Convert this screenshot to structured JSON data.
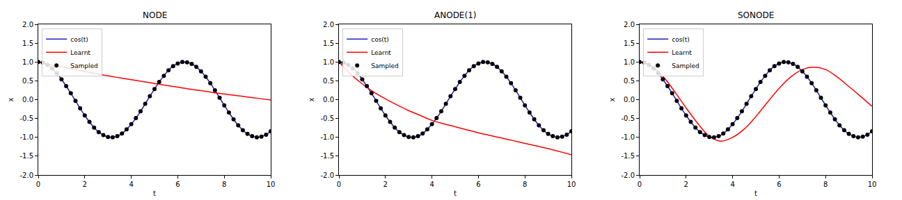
{
  "chart_data": [
    {
      "type": "line",
      "title": "NODE",
      "x_label": "t",
      "y_label": "x",
      "legend": "upper left",
      "xlim": [
        0,
        10
      ],
      "xticks": [
        0,
        2,
        4,
        6,
        8,
        10
      ],
      "ylim": [
        -2,
        2
      ],
      "yticks": [
        {
          "value": -2,
          "label": "-2.0"
        },
        {
          "value": -1.5,
          "label": "-1.5"
        },
        {
          "value": -1,
          "label": "-1.0"
        },
        {
          "value": -0.5,
          "label": "-0.5"
        },
        {
          "value": 0,
          "label": "0.0"
        },
        {
          "value": 0.5,
          "label": "0.5"
        },
        {
          "value": 1,
          "label": "1.0"
        },
        {
          "value": 1.5,
          "label": "1.5"
        },
        {
          "value": 2,
          "label": "2.0"
        }
      ],
      "x": [
        0,
        0.2,
        0.4,
        0.6,
        0.8,
        1.0,
        1.2,
        1.4,
        1.6,
        1.8,
        2.0,
        2.2,
        2.4,
        2.6,
        2.8,
        3.0,
        3.2,
        3.4,
        3.6,
        3.8,
        4.0,
        4.2,
        4.4,
        4.6,
        4.8,
        5.0,
        5.2,
        5.4,
        5.6,
        5.8,
        6.0,
        6.2,
        6.4,
        6.6,
        6.8,
        7.0,
        7.2,
        7.4,
        7.6,
        7.8,
        8.0,
        8.2,
        8.4,
        8.6,
        8.8,
        9.0,
        9.2,
        9.4,
        9.6,
        9.8,
        10.0
      ],
      "series": [
        {
          "name": "cos(t)",
          "type": "line",
          "color": "#1f1fbf",
          "line_style": "solid",
          "values": [
            1.0,
            0.98,
            0.92,
            0.83,
            0.7,
            0.54,
            0.36,
            0.17,
            -0.03,
            -0.23,
            -0.42,
            -0.59,
            -0.74,
            -0.86,
            -0.94,
            -0.99,
            -1.0,
            -0.97,
            -0.9,
            -0.79,
            -0.65,
            -0.49,
            -0.31,
            -0.11,
            0.09,
            0.28,
            0.47,
            0.63,
            0.78,
            0.89,
            0.96,
            1.0,
            0.99,
            0.95,
            0.87,
            0.75,
            0.61,
            0.44,
            0.25,
            0.05,
            -0.15,
            -0.34,
            -0.52,
            -0.68,
            -0.81,
            -0.91,
            -0.97,
            -1.0,
            -0.98,
            -0.93,
            -0.84
          ]
        },
        {
          "name": "Learnt",
          "type": "line",
          "color": "#ff0000",
          "line_style": "solid",
          "x": [
            0,
            0.5,
            1,
            1.5,
            2,
            2.5,
            3,
            3.5,
            4,
            4.5,
            5,
            5.5,
            6,
            6.5,
            7,
            7.5,
            8,
            8.5,
            9,
            9.5,
            10
          ],
          "values": [
            1.0,
            0.93,
            0.87,
            0.81,
            0.75,
            0.69,
            0.63,
            0.58,
            0.53,
            0.48,
            0.43,
            0.38,
            0.33,
            0.28,
            0.24,
            0.19,
            0.15,
            0.11,
            0.07,
            0.03,
            -0.01
          ]
        },
        {
          "name": "Sampled",
          "type": "scatter",
          "color": "#000000",
          "marker": "circle",
          "values": [
            1.0,
            0.98,
            0.92,
            0.83,
            0.7,
            0.54,
            0.36,
            0.17,
            -0.03,
            -0.23,
            -0.42,
            -0.59,
            -0.74,
            -0.86,
            -0.94,
            -0.99,
            -1.0,
            -0.97,
            -0.9,
            -0.79,
            -0.65,
            -0.49,
            -0.31,
            -0.11,
            0.09,
            0.28,
            0.47,
            0.63,
            0.78,
            0.89,
            0.96,
            1.0,
            0.99,
            0.95,
            0.87,
            0.75,
            0.61,
            0.44,
            0.25,
            0.05,
            -0.15,
            -0.34,
            -0.52,
            -0.68,
            -0.81,
            -0.91,
            -0.97,
            -1.0,
            -0.98,
            -0.93,
            -0.84
          ]
        }
      ]
    },
    {
      "type": "line",
      "title": "ANODE(1)",
      "x_label": "t",
      "y_label": "x",
      "legend": "upper left",
      "xlim": [
        0,
        10
      ],
      "xticks": [
        0,
        2,
        4,
        6,
        8,
        10
      ],
      "ylim": [
        -2,
        2
      ],
      "yticks": [
        {
          "value": -2,
          "label": "-2.0"
        },
        {
          "value": -1.5,
          "label": "-1.5"
        },
        {
          "value": -1,
          "label": "-1.0"
        },
        {
          "value": -0.5,
          "label": "-0.5"
        },
        {
          "value": 0,
          "label": "0.0"
        },
        {
          "value": 0.5,
          "label": "0.5"
        },
        {
          "value": 1,
          "label": "1.0"
        },
        {
          "value": 1.5,
          "label": "1.5"
        },
        {
          "value": 2,
          "label": "2.0"
        }
      ],
      "x": [
        0,
        0.2,
        0.4,
        0.6,
        0.8,
        1.0,
        1.2,
        1.4,
        1.6,
        1.8,
        2.0,
        2.2,
        2.4,
        2.6,
        2.8,
        3.0,
        3.2,
        3.4,
        3.6,
        3.8,
        4.0,
        4.2,
        4.4,
        4.6,
        4.8,
        5.0,
        5.2,
        5.4,
        5.6,
        5.8,
        6.0,
        6.2,
        6.4,
        6.6,
        6.8,
        7.0,
        7.2,
        7.4,
        7.6,
        7.8,
        8.0,
        8.2,
        8.4,
        8.6,
        8.8,
        9.0,
        9.2,
        9.4,
        9.6,
        9.8,
        10.0
      ],
      "series": [
        {
          "name": "cos(t)",
          "type": "line",
          "color": "#1f1fbf",
          "line_style": "solid",
          "values": [
            1.0,
            0.98,
            0.92,
            0.83,
            0.7,
            0.54,
            0.36,
            0.17,
            -0.03,
            -0.23,
            -0.42,
            -0.59,
            -0.74,
            -0.86,
            -0.94,
            -0.99,
            -1.0,
            -0.97,
            -0.9,
            -0.79,
            -0.65,
            -0.49,
            -0.31,
            -0.11,
            0.09,
            0.28,
            0.47,
            0.63,
            0.78,
            0.89,
            0.96,
            1.0,
            0.99,
            0.95,
            0.87,
            0.75,
            0.61,
            0.44,
            0.25,
            0.05,
            -0.15,
            -0.34,
            -0.52,
            -0.68,
            -0.81,
            -0.91,
            -0.97,
            -1.0,
            -0.98,
            -0.93,
            -0.84
          ]
        },
        {
          "name": "Learnt",
          "type": "line",
          "color": "#ff0000",
          "line_style": "solid",
          "x": [
            0,
            0.5,
            1,
            1.5,
            2,
            2.5,
            3,
            3.5,
            4,
            4.5,
            5,
            5.5,
            6,
            6.5,
            7,
            7.5,
            8,
            8.5,
            9,
            9.5,
            10
          ],
          "values": [
            1.0,
            0.68,
            0.42,
            0.2,
            0.02,
            -0.14,
            -0.29,
            -0.42,
            -0.55,
            -0.64,
            -0.72,
            -0.8,
            -0.88,
            -0.95,
            -1.02,
            -1.09,
            -1.16,
            -1.23,
            -1.3,
            -1.38,
            -1.46
          ]
        },
        {
          "name": "Sampled",
          "type": "scatter",
          "color": "#000000",
          "marker": "circle",
          "values": [
            1.0,
            0.98,
            0.92,
            0.83,
            0.7,
            0.54,
            0.36,
            0.17,
            -0.03,
            -0.23,
            -0.42,
            -0.59,
            -0.74,
            -0.86,
            -0.94,
            -0.99,
            -1.0,
            -0.97,
            -0.9,
            -0.79,
            -0.65,
            -0.49,
            -0.31,
            -0.11,
            0.09,
            0.28,
            0.47,
            0.63,
            0.78,
            0.89,
            0.96,
            1.0,
            0.99,
            0.95,
            0.87,
            0.75,
            0.61,
            0.44,
            0.25,
            0.05,
            -0.15,
            -0.34,
            -0.52,
            -0.68,
            -0.81,
            -0.91,
            -0.97,
            -1.0,
            -0.98,
            -0.93,
            -0.84
          ]
        }
      ]
    },
    {
      "type": "line",
      "title": "SONODE",
      "x_label": "t",
      "y_label": "x",
      "legend": "upper left",
      "xlim": [
        0,
        10
      ],
      "xticks": [
        0,
        2,
        4,
        6,
        8,
        10
      ],
      "ylim": [
        -2,
        2
      ],
      "yticks": [
        {
          "value": -2,
          "label": "-2.0"
        },
        {
          "value": -1.5,
          "label": "-1.5"
        },
        {
          "value": -1,
          "label": "-1.0"
        },
        {
          "value": -0.5,
          "label": "-0.5"
        },
        {
          "value": 0,
          "label": "0.0"
        },
        {
          "value": 0.5,
          "label": "0.5"
        },
        {
          "value": 1,
          "label": "1.0"
        },
        {
          "value": 1.5,
          "label": "1.5"
        },
        {
          "value": 2,
          "label": "2.0"
        }
      ],
      "x": [
        0,
        0.2,
        0.4,
        0.6,
        0.8,
        1.0,
        1.2,
        1.4,
        1.6,
        1.8,
        2.0,
        2.2,
        2.4,
        2.6,
        2.8,
        3.0,
        3.2,
        3.4,
        3.6,
        3.8,
        4.0,
        4.2,
        4.4,
        4.6,
        4.8,
        5.0,
        5.2,
        5.4,
        5.6,
        5.8,
        6.0,
        6.2,
        6.4,
        6.6,
        6.8,
        7.0,
        7.2,
        7.4,
        7.6,
        7.8,
        8.0,
        8.2,
        8.4,
        8.6,
        8.8,
        9.0,
        9.2,
        9.4,
        9.6,
        9.8,
        10.0
      ],
      "series": [
        {
          "name": "cos(t)",
          "type": "line",
          "color": "#1f1fbf",
          "line_style": "solid",
          "values": [
            1.0,
            0.98,
            0.92,
            0.83,
            0.7,
            0.54,
            0.36,
            0.17,
            -0.03,
            -0.23,
            -0.42,
            -0.59,
            -0.74,
            -0.86,
            -0.94,
            -0.99,
            -1.0,
            -0.97,
            -0.9,
            -0.79,
            -0.65,
            -0.49,
            -0.31,
            -0.11,
            0.09,
            0.28,
            0.47,
            0.63,
            0.78,
            0.89,
            0.96,
            1.0,
            0.99,
            0.95,
            0.87,
            0.75,
            0.61,
            0.44,
            0.25,
            0.05,
            -0.15,
            -0.34,
            -0.52,
            -0.68,
            -0.81,
            -0.91,
            -0.97,
            -1.0,
            -0.98,
            -0.93,
            -0.84
          ]
        },
        {
          "name": "Learnt",
          "type": "line",
          "color": "#ff0000",
          "line_style": "solid",
          "x": [
            0,
            0.5,
            1,
            1.5,
            2,
            2.5,
            3,
            3.5,
            4,
            4.5,
            5,
            5.5,
            6,
            6.5,
            7,
            7.5,
            8,
            8.5,
            9,
            9.5,
            10
          ],
          "values": [
            1.0,
            0.9,
            0.62,
            0.22,
            -0.22,
            -0.63,
            -0.97,
            -1.1,
            -1.0,
            -0.78,
            -0.45,
            -0.07,
            0.3,
            0.6,
            0.8,
            0.86,
            0.8,
            0.6,
            0.35,
            0.09,
            -0.18
          ]
        },
        {
          "name": "Sampled",
          "type": "scatter",
          "color": "#000000",
          "marker": "circle",
          "values": [
            1.0,
            0.98,
            0.92,
            0.83,
            0.7,
            0.54,
            0.36,
            0.17,
            -0.03,
            -0.23,
            -0.42,
            -0.59,
            -0.74,
            -0.86,
            -0.94,
            -0.99,
            -1.0,
            -0.97,
            -0.9,
            -0.79,
            -0.65,
            -0.49,
            -0.31,
            -0.11,
            0.09,
            0.28,
            0.47,
            0.63,
            0.78,
            0.89,
            0.96,
            1.0,
            0.99,
            0.95,
            0.87,
            0.75,
            0.61,
            0.44,
            0.25,
            0.05,
            -0.15,
            -0.34,
            -0.52,
            -0.68,
            -0.81,
            -0.91,
            -0.97,
            -1.0,
            -0.98,
            -0.93,
            -0.84
          ]
        }
      ]
    }
  ]
}
